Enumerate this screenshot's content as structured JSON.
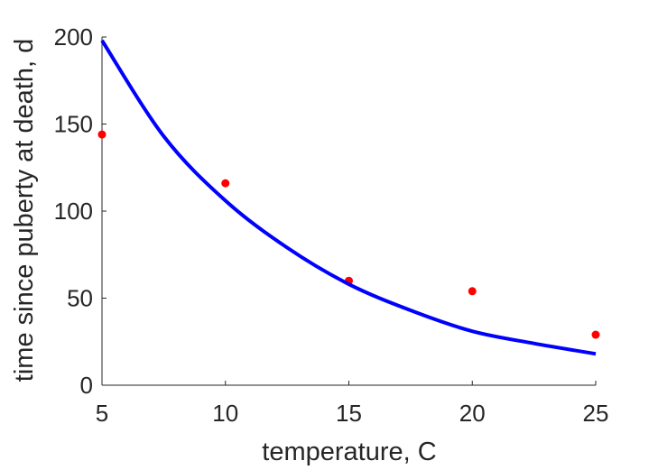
{
  "chart_data": {
    "type": "scatter",
    "xlabel": "temperature, C",
    "ylabel": "time since puberty at death, d",
    "xlim": [
      5,
      25
    ],
    "ylim": [
      0,
      200
    ],
    "xticks": [
      5,
      10,
      15,
      20,
      25
    ],
    "yticks": [
      0,
      50,
      100,
      150,
      200
    ],
    "grid": false,
    "series": [
      {
        "kind": "points",
        "color": "#ff0000",
        "x": [
          5,
          10,
          15,
          20,
          25
        ],
        "y": [
          144,
          116,
          60,
          54,
          29
        ]
      },
      {
        "kind": "line",
        "color": "#0000ff",
        "x": [
          5,
          7.5,
          10,
          12.5,
          15,
          17.5,
          20,
          22.5,
          25
        ],
        "y": [
          198,
          143,
          106,
          79,
          58,
          43,
          31,
          24,
          18
        ]
      }
    ]
  }
}
